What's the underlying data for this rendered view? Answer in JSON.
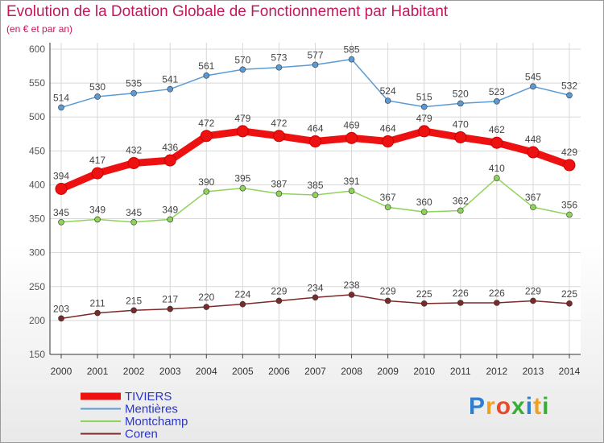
{
  "header": {
    "title": "Evolution de la Dotation Globale de Fonctionnement par Habitant",
    "subtitle": "(en € et par an)"
  },
  "logo": {
    "text": "Proxiti",
    "letters": [
      {
        "ch": "P",
        "color": "#2e7fd0"
      },
      {
        "ch": "r",
        "color": "#f0a020"
      },
      {
        "ch": "o",
        "color": "#e94a2a"
      },
      {
        "ch": "x",
        "color": "#35b035"
      },
      {
        "ch": "i",
        "color": "#2e7fd0"
      },
      {
        "ch": "t",
        "color": "#f0a020"
      },
      {
        "ch": "i",
        "color": "#35b035"
      }
    ]
  },
  "chart_data": {
    "type": "line",
    "title": "Evolution de la Dotation Globale de Fonctionnement par Habitant",
    "subtitle": "(en € et par an)",
    "x": [
      "2000",
      "2001",
      "2002",
      "2003",
      "2004",
      "2005",
      "2006",
      "2007",
      "2008",
      "2009",
      "2010",
      "2011",
      "2012",
      "2013",
      "2014"
    ],
    "ylim": [
      150,
      600
    ],
    "yticks": [
      150,
      200,
      250,
      300,
      350,
      400,
      450,
      500,
      550,
      600
    ],
    "grid": true,
    "legend_position": "bottom-left",
    "series": [
      {
        "name": "TIVIERS",
        "color": "#ee1111",
        "emphasis": true,
        "values": [
          394,
          417,
          432,
          436,
          472,
          479,
          472,
          464,
          469,
          464,
          479,
          470,
          462,
          448,
          429
        ]
      },
      {
        "name": "Mentières",
        "color": "#5b9bd5",
        "emphasis": false,
        "values": [
          514,
          530,
          535,
          541,
          561,
          570,
          573,
          577,
          585,
          524,
          515,
          520,
          523,
          545,
          532
        ]
      },
      {
        "name": "Montchamp",
        "color": "#8fd45a",
        "emphasis": false,
        "values": [
          345,
          349,
          345,
          349,
          390,
          395,
          387,
          385,
          391,
          367,
          360,
          362,
          410,
          367,
          356
        ]
      },
      {
        "name": "Coren",
        "color": "#7a2a2a",
        "emphasis": false,
        "values": [
          203,
          211,
          215,
          217,
          220,
          224,
          229,
          234,
          238,
          229,
          225,
          226,
          226,
          229,
          225
        ]
      }
    ]
  }
}
